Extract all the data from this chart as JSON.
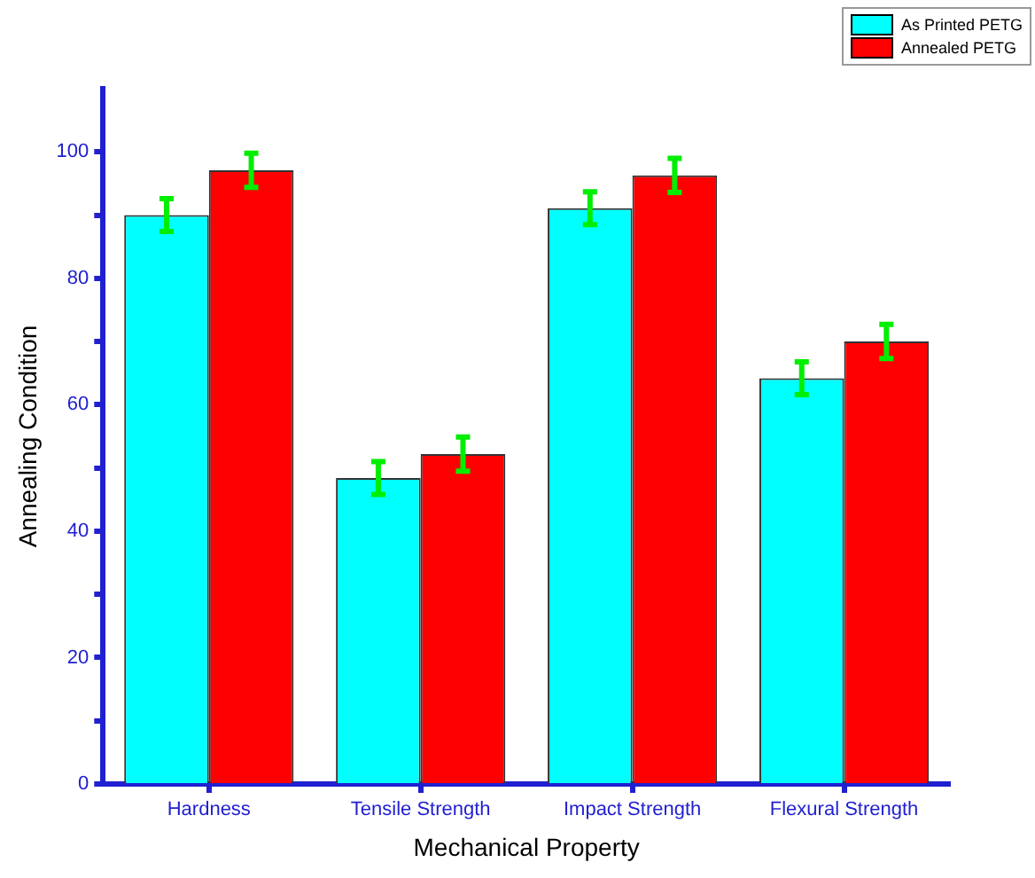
{
  "chart_data": {
    "type": "bar",
    "xlabel": "Mechanical Property",
    "ylabel": "Annealing Condition",
    "categories": [
      "Hardness",
      "Tensile Strength",
      "Impact Strength",
      "Flexural Strength"
    ],
    "series": [
      {
        "name": "As Printed PETG",
        "color": "#00ffff",
        "values": [
          90,
          48.4,
          91.1,
          64.2
        ],
        "errors": [
          2.6,
          2.6,
          2.6,
          2.6
        ]
      },
      {
        "name": "Annealed PETG",
        "color": "#ff0000",
        "values": [
          97.1,
          52.2,
          96.3,
          70
        ],
        "errors": [
          2.7,
          2.7,
          2.7,
          2.7
        ]
      }
    ],
    "ylim": [
      0,
      110
    ],
    "yticks": [
      0,
      {
        "value": 10,
        "label": null
      },
      20,
      {
        "value": 30,
        "label": null
      },
      40,
      {
        "value": 50,
        "label": null
      },
      60,
      {
        "value": 70,
        "label": null
      },
      80,
      {
        "value": 90,
        "label": null
      },
      100
    ],
    "grid": false,
    "legend": "top right"
  }
}
